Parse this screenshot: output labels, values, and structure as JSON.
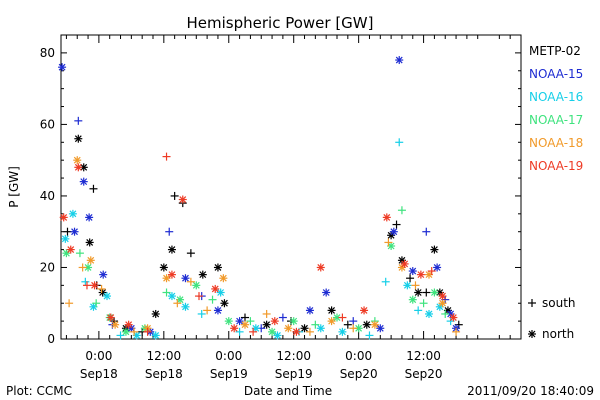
{
  "chart_data": {
    "type": "scatter",
    "title": "Hemispheric Power [GW]",
    "xlabel": "Date and Time",
    "ylabel": "P [GW]",
    "ylim": [
      0,
      85
    ],
    "xlim_hours": [
      -7,
      78
    ],
    "yticks": [
      0,
      20,
      40,
      60,
      80
    ],
    "xticks": [
      {
        "h": 0,
        "time": "0:00",
        "date": "Sep18"
      },
      {
        "h": 12,
        "time": "12:00",
        "date": "Sep18"
      },
      {
        "h": 24,
        "time": "0:00",
        "date": "Sep19"
      },
      {
        "h": 36,
        "time": "12:00",
        "date": "Sep19"
      },
      {
        "h": 48,
        "time": "0:00",
        "date": "Sep20"
      },
      {
        "h": 60,
        "time": "12:00",
        "date": "Sep20"
      }
    ],
    "marker_legend": [
      {
        "symbol": "+",
        "label": "south"
      },
      {
        "symbol": "*",
        "label": "north"
      }
    ],
    "footer_left": "Plot: CCMC",
    "footer_right": "2011/09/20 18:40:09",
    "series": [
      {
        "name": "METP-02",
        "color": "#000000",
        "points": [
          [
            -5.8,
            30,
            "+"
          ],
          [
            -3.8,
            56,
            "*"
          ],
          [
            -2.8,
            48,
            "*"
          ],
          [
            -1.7,
            27,
            "*"
          ],
          [
            -1.0,
            42,
            "+"
          ],
          [
            -0.4,
            15,
            "+"
          ],
          [
            0.7,
            13,
            "*"
          ],
          [
            2.8,
            5,
            "+"
          ],
          [
            5.0,
            3,
            "*"
          ],
          [
            8.0,
            2,
            "+"
          ],
          [
            10.5,
            7,
            "*"
          ],
          [
            12.0,
            20,
            "*"
          ],
          [
            13.5,
            25,
            "*"
          ],
          [
            14.0,
            40,
            "+"
          ],
          [
            15.5,
            38,
            "+"
          ],
          [
            17.0,
            24,
            "+"
          ],
          [
            19.2,
            18,
            "*"
          ],
          [
            22.0,
            20,
            "*"
          ],
          [
            23.2,
            10,
            "*"
          ],
          [
            27.0,
            6,
            "+"
          ],
          [
            31.0,
            4,
            "*"
          ],
          [
            35.5,
            5,
            "+"
          ],
          [
            38.0,
            3,
            "*"
          ],
          [
            43.0,
            8,
            "*"
          ],
          [
            46.0,
            4,
            "+"
          ],
          [
            49.5,
            4,
            "*"
          ],
          [
            54.0,
            29,
            "*"
          ],
          [
            55.0,
            32,
            "+"
          ],
          [
            56.0,
            22,
            "*"
          ],
          [
            57.5,
            17,
            "+"
          ],
          [
            59.0,
            13,
            "*"
          ],
          [
            60.5,
            13,
            "+"
          ],
          [
            62.0,
            25,
            "*"
          ],
          [
            63.0,
            13,
            "*"
          ],
          [
            64.5,
            8,
            "*"
          ],
          [
            66.5,
            4,
            "+"
          ]
        ]
      },
      {
        "name": "NOAA-15",
        "color": "#1e2cd2",
        "points": [
          [
            -6.8,
            76,
            "*"
          ],
          [
            -4.5,
            30,
            "*"
          ],
          [
            -3.8,
            61,
            "+"
          ],
          [
            -2.8,
            44,
            "*"
          ],
          [
            -1.8,
            34,
            "*"
          ],
          [
            0.8,
            18,
            "*"
          ],
          [
            2.5,
            4,
            "+"
          ],
          [
            6.0,
            3,
            "*"
          ],
          [
            9.5,
            2,
            "*"
          ],
          [
            13.0,
            30,
            "+"
          ],
          [
            16.0,
            17,
            "*"
          ],
          [
            19.0,
            12,
            "+"
          ],
          [
            22.0,
            8,
            "*"
          ],
          [
            26.0,
            5,
            "*"
          ],
          [
            30.0,
            3,
            "+"
          ],
          [
            34.0,
            6,
            "+"
          ],
          [
            39.0,
            8,
            "*"
          ],
          [
            42.0,
            13,
            "*"
          ],
          [
            47.0,
            5,
            "+"
          ],
          [
            52.0,
            3,
            "*"
          ],
          [
            54.5,
            30,
            "*"
          ],
          [
            55.5,
            78,
            "*"
          ],
          [
            58.0,
            19,
            "*"
          ],
          [
            60.5,
            30,
            "+"
          ],
          [
            62.5,
            20,
            "*"
          ],
          [
            64.0,
            11,
            "+"
          ],
          [
            65.0,
            7,
            "*"
          ],
          [
            66.0,
            3,
            "*"
          ]
        ]
      },
      {
        "name": "NOAA-16",
        "color": "#16cfe8",
        "points": [
          [
            -6.2,
            28,
            "*"
          ],
          [
            -4.8,
            35,
            "*"
          ],
          [
            -2.5,
            16,
            "+"
          ],
          [
            -1.0,
            9,
            "*"
          ],
          [
            1.5,
            12,
            "*"
          ],
          [
            4.0,
            1,
            "+"
          ],
          [
            7.0,
            1,
            "*"
          ],
          [
            10.5,
            1,
            "*"
          ],
          [
            13.5,
            12,
            "*"
          ],
          [
            16.0,
            9,
            "*"
          ],
          [
            19.0,
            7,
            "+"
          ],
          [
            22.5,
            13,
            "*"
          ],
          [
            26.0,
            2,
            "+"
          ],
          [
            29.0,
            3,
            "*"
          ],
          [
            33.0,
            1,
            "*"
          ],
          [
            37.0,
            2,
            "+"
          ],
          [
            41.0,
            3,
            "*"
          ],
          [
            45.0,
            2,
            "*"
          ],
          [
            50.0,
            1,
            "+"
          ],
          [
            53.0,
            16,
            "+"
          ],
          [
            55.5,
            55,
            "+"
          ],
          [
            57.0,
            15,
            "*"
          ],
          [
            59.0,
            8,
            "+"
          ],
          [
            61.0,
            7,
            "*"
          ],
          [
            63.0,
            9,
            "*"
          ],
          [
            65.0,
            5,
            "+"
          ]
        ]
      },
      {
        "name": "NOAA-17",
        "color": "#3ee37e",
        "points": [
          [
            -6.0,
            24,
            "*"
          ],
          [
            -3.5,
            24,
            "+"
          ],
          [
            -2.0,
            20,
            "*"
          ],
          [
            -0.5,
            10,
            "+"
          ],
          [
            2.0,
            6,
            "*"
          ],
          [
            5.0,
            2,
            "*"
          ],
          [
            8.5,
            3,
            "*"
          ],
          [
            12.5,
            13,
            "+"
          ],
          [
            15.0,
            11,
            "*"
          ],
          [
            18.0,
            15,
            "*"
          ],
          [
            21.0,
            11,
            "+"
          ],
          [
            24.0,
            5,
            "*"
          ],
          [
            28.0,
            5,
            "+"
          ],
          [
            32.0,
            2,
            "*"
          ],
          [
            36.0,
            5,
            "*"
          ],
          [
            40.0,
            4,
            "+"
          ],
          [
            44.0,
            6,
            "*"
          ],
          [
            48.0,
            3,
            "*"
          ],
          [
            51.0,
            5,
            "+"
          ],
          [
            54.0,
            26,
            "*"
          ],
          [
            56.0,
            36,
            "+"
          ],
          [
            58.0,
            11,
            "*"
          ],
          [
            60.0,
            10,
            "+"
          ],
          [
            62.0,
            13,
            "*"
          ],
          [
            64.0,
            7,
            "+"
          ]
        ]
      },
      {
        "name": "NOAA-18",
        "color": "#f19a2a",
        "points": [
          [
            -5.5,
            10,
            "+"
          ],
          [
            -4.0,
            50,
            "*"
          ],
          [
            -3.0,
            20,
            "+"
          ],
          [
            -1.5,
            22,
            "*"
          ],
          [
            0.5,
            14,
            "+"
          ],
          [
            3.0,
            4,
            "*"
          ],
          [
            6.5,
            2,
            "+"
          ],
          [
            9.0,
            3,
            "*"
          ],
          [
            12.5,
            17,
            "*"
          ],
          [
            14.5,
            10,
            "+"
          ],
          [
            17.0,
            16,
            "+"
          ],
          [
            20.0,
            8,
            "+"
          ],
          [
            23.0,
            17,
            "*"
          ],
          [
            27.0,
            4,
            "*"
          ],
          [
            31.0,
            7,
            "+"
          ],
          [
            35.0,
            3,
            "*"
          ],
          [
            39.0,
            2,
            "+"
          ],
          [
            43.0,
            5,
            "*"
          ],
          [
            47.0,
            3,
            "+"
          ],
          [
            51.0,
            4,
            "*"
          ],
          [
            53.5,
            27,
            "+"
          ],
          [
            56.0,
            20,
            "*"
          ],
          [
            58.5,
            15,
            "+"
          ],
          [
            61.0,
            18,
            "*"
          ],
          [
            63.5,
            10,
            "*"
          ],
          [
            66.0,
            2,
            "+"
          ]
        ]
      },
      {
        "name": "NOAA-19",
        "color": "#ee3b25",
        "points": [
          [
            -6.5,
            34,
            "*"
          ],
          [
            -5.2,
            25,
            "*"
          ],
          [
            -3.8,
            48,
            "*"
          ],
          [
            -2.2,
            15,
            "+"
          ],
          [
            -0.8,
            15,
            "*"
          ],
          [
            2.2,
            6,
            "*"
          ],
          [
            5.5,
            4,
            "*"
          ],
          [
            9.0,
            2,
            "+"
          ],
          [
            12.5,
            51,
            "+"
          ],
          [
            13.5,
            18,
            "*"
          ],
          [
            15.5,
            39,
            "*"
          ],
          [
            18.5,
            12,
            "+"
          ],
          [
            21.5,
            14,
            "*"
          ],
          [
            25.0,
            3,
            "*"
          ],
          [
            28.5,
            2,
            "+"
          ],
          [
            32.5,
            5,
            "*"
          ],
          [
            36.5,
            2,
            "*"
          ],
          [
            41.0,
            20,
            "*"
          ],
          [
            45.0,
            6,
            "+"
          ],
          [
            49.0,
            8,
            "*"
          ],
          [
            53.2,
            34,
            "*"
          ],
          [
            56.5,
            21,
            "*"
          ],
          [
            59.5,
            18,
            "*"
          ],
          [
            61.5,
            19,
            "+"
          ],
          [
            63.5,
            12,
            "*"
          ],
          [
            65.5,
            6,
            "*"
          ]
        ]
      }
    ]
  }
}
